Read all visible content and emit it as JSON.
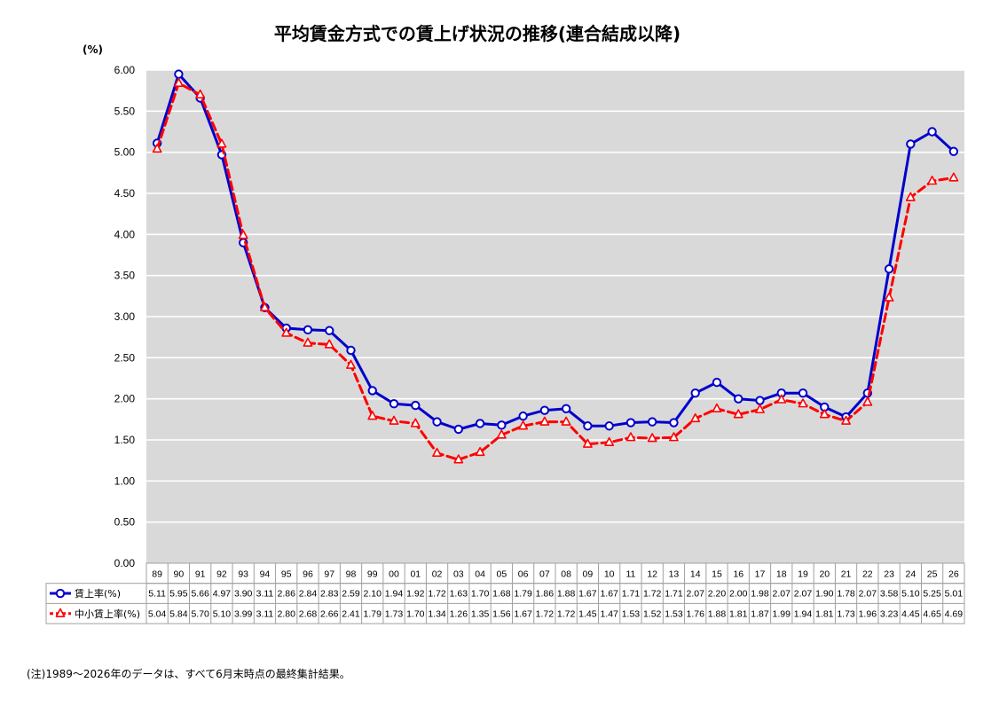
{
  "chart_data": {
    "type": "line",
    "title": "平均賃金方式での賃上げ状況の推移(連合結成以降)",
    "ylabel": "(%)",
    "ylim": [
      0,
      6
    ],
    "yticks": [
      "0.00",
      "0.50",
      "1.00",
      "1.50",
      "2.00",
      "2.50",
      "3.00",
      "3.50",
      "4.00",
      "4.50",
      "5.00",
      "5.50",
      "6.00"
    ],
    "grid": true,
    "legend": "data table below plot",
    "categories": [
      "89",
      "90",
      "91",
      "92",
      "93",
      "94",
      "95",
      "96",
      "97",
      "98",
      "99",
      "00",
      "01",
      "02",
      "03",
      "04",
      "05",
      "06",
      "07",
      "08",
      "09",
      "10",
      "11",
      "12",
      "13",
      "14",
      "15",
      "16",
      "17",
      "18",
      "19",
      "20",
      "21",
      "22",
      "23",
      "24",
      "25",
      "26"
    ],
    "series": [
      {
        "name": "賃上率(%)",
        "color": "#0000cc",
        "line_style": "solid",
        "marker": "circle",
        "values": [
          5.11,
          5.95,
          5.66,
          4.97,
          3.9,
          3.11,
          2.86,
          2.84,
          2.83,
          2.59,
          2.1,
          1.94,
          1.92,
          1.72,
          1.63,
          1.7,
          1.68,
          1.79,
          1.86,
          1.88,
          1.67,
          1.67,
          1.71,
          1.72,
          1.71,
          2.07,
          2.2,
          2.0,
          1.98,
          2.07,
          2.07,
          1.9,
          1.78,
          2.07,
          3.58,
          5.1,
          5.25,
          5.01
        ]
      },
      {
        "name": "中小賃上率(%)",
        "color": "#ff0000",
        "line_style": "dashed",
        "marker": "triangle",
        "values": [
          5.04,
          5.84,
          5.7,
          5.1,
          3.99,
          3.11,
          2.8,
          2.68,
          2.66,
          2.41,
          1.79,
          1.73,
          1.7,
          1.34,
          1.26,
          1.35,
          1.56,
          1.67,
          1.72,
          1.72,
          1.45,
          1.47,
          1.53,
          1.52,
          1.53,
          1.76,
          1.88,
          1.81,
          1.87,
          1.99,
          1.94,
          1.81,
          1.73,
          1.96,
          3.23,
          4.45,
          4.65,
          4.69
        ]
      }
    ]
  },
  "footnote": "(注)1989～2026年のデータは、すべて6月末時点の最終集計結果。"
}
